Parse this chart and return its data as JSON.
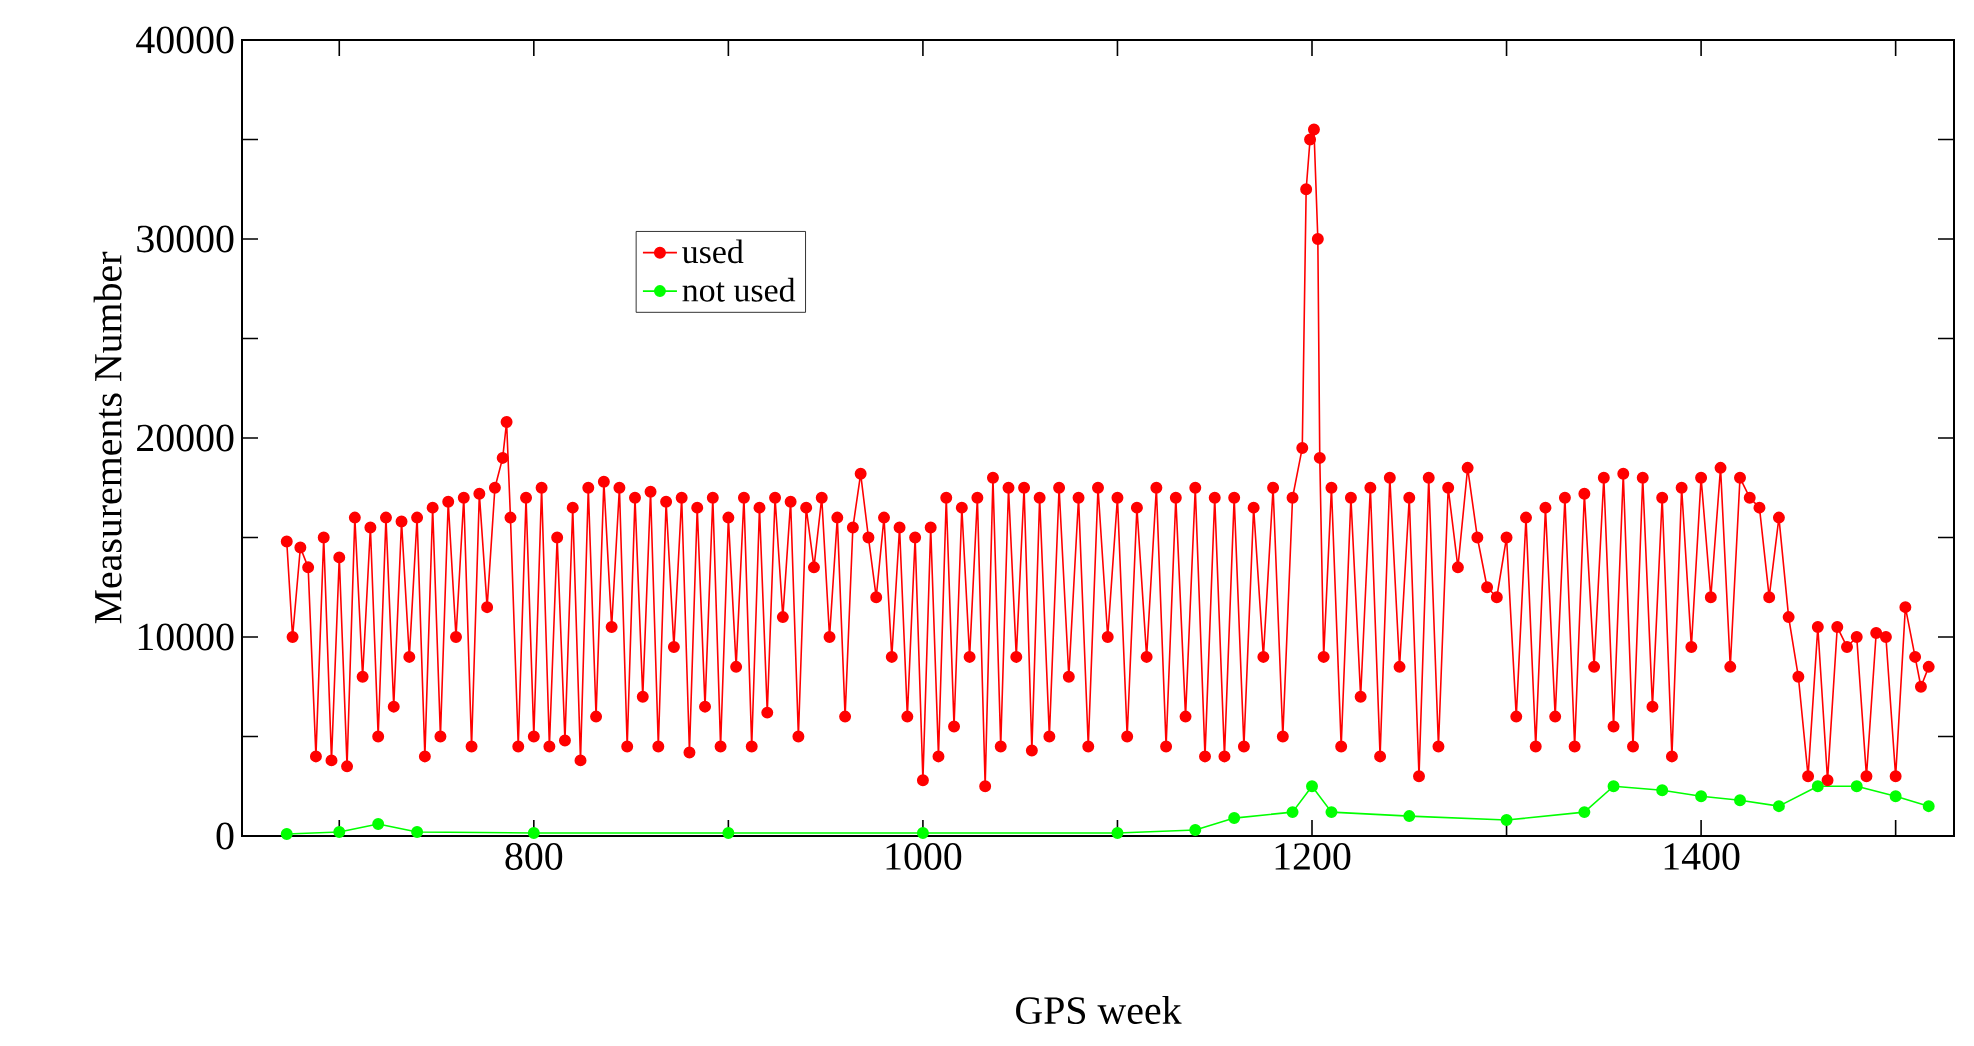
{
  "chart_data": {
    "type": "line",
    "xlabel": "GPS week",
    "ylabel": "Measurements Number",
    "xlim": [
      650,
      1530
    ],
    "ylim": [
      0,
      40000
    ],
    "xticks": [
      {
        "value": 700,
        "label": null
      },
      800,
      {
        "value": 900,
        "label": null
      },
      1000,
      {
        "value": 1100,
        "label": null
      },
      1200,
      {
        "value": 1300,
        "label": null
      },
      1400,
      {
        "value": 1500,
        "label": null
      }
    ],
    "yticks": [
      0,
      {
        "value": 5000,
        "label": null
      },
      10000,
      {
        "value": 15000,
        "label": null
      },
      20000,
      {
        "value": 25000,
        "label": null
      },
      30000,
      {
        "value": 35000,
        "label": null
      },
      40000
    ],
    "grid": false,
    "legend": "top left",
    "marker": "circle",
    "line_style": "solid",
    "series": [
      {
        "name": "used",
        "color": "#ff0000",
        "x": [
          673,
          676,
          680,
          684,
          688,
          692,
          696,
          700,
          704,
          708,
          712,
          716,
          720,
          724,
          728,
          732,
          736,
          740,
          744,
          748,
          752,
          756,
          760,
          764,
          768,
          772,
          776,
          780,
          784,
          786,
          788,
          792,
          796,
          800,
          804,
          808,
          812,
          816,
          820,
          824,
          828,
          832,
          836,
          840,
          844,
          848,
          852,
          856,
          860,
          864,
          868,
          872,
          876,
          880,
          884,
          888,
          892,
          896,
          900,
          904,
          908,
          912,
          916,
          920,
          924,
          928,
          932,
          936,
          940,
          944,
          948,
          952,
          956,
          960,
          964,
          968,
          972,
          976,
          980,
          984,
          988,
          992,
          996,
          1000,
          1004,
          1008,
          1012,
          1016,
          1020,
          1024,
          1028,
          1032,
          1036,
          1040,
          1044,
          1048,
          1052,
          1056,
          1060,
          1065,
          1070,
          1075,
          1080,
          1085,
          1090,
          1095,
          1100,
          1105,
          1110,
          1115,
          1120,
          1125,
          1130,
          1135,
          1140,
          1145,
          1150,
          1155,
          1160,
          1165,
          1170,
          1175,
          1180,
          1185,
          1190,
          1195,
          1197,
          1199,
          1201,
          1203,
          1204,
          1206,
          1210,
          1215,
          1220,
          1225,
          1230,
          1235,
          1240,
          1245,
          1250,
          1255,
          1260,
          1265,
          1270,
          1275,
          1280,
          1285,
          1290,
          1295,
          1300,
          1305,
          1310,
          1315,
          1320,
          1325,
          1330,
          1335,
          1340,
          1345,
          1350,
          1355,
          1360,
          1365,
          1370,
          1375,
          1380,
          1385,
          1390,
          1395,
          1400,
          1405,
          1410,
          1415,
          1420,
          1425,
          1430,
          1435,
          1440,
          1445,
          1450,
          1455,
          1460,
          1465,
          1470,
          1475,
          1480,
          1485,
          1490,
          1495,
          1500,
          1505,
          1510,
          1513,
          1517
        ],
        "values": [
          14800,
          10000,
          14500,
          13500,
          4000,
          15000,
          3800,
          14000,
          3500,
          16000,
          8000,
          15500,
          5000,
          16000,
          6500,
          15800,
          9000,
          16000,
          4000,
          16500,
          5000,
          16800,
          10000,
          17000,
          4500,
          17200,
          11500,
          17500,
          19000,
          20800,
          16000,
          4500,
          17000,
          5000,
          17500,
          4500,
          15000,
          4800,
          16500,
          3800,
          17500,
          6000,
          17800,
          10500,
          17500,
          4500,
          17000,
          7000,
          17300,
          4500,
          16800,
          9500,
          17000,
          4200,
          16500,
          6500,
          17000,
          4500,
          16000,
          8500,
          17000,
          4500,
          16500,
          6200,
          17000,
          11000,
          16800,
          5000,
          16500,
          13500,
          17000,
          10000,
          16000,
          6000,
          15500,
          18200,
          15000,
          12000,
          16000,
          9000,
          15500,
          6000,
          15000,
          2800,
          15500,
          4000,
          17000,
          5500,
          16500,
          9000,
          17000,
          2500,
          18000,
          4500,
          17500,
          9000,
          17500,
          4300,
          17000,
          5000,
          17500,
          8000,
          17000,
          4500,
          17500,
          10000,
          17000,
          5000,
          16500,
          9000,
          17500,
          4500,
          17000,
          6000,
          17500,
          4000,
          17000,
          4000,
          17000,
          4500,
          16500,
          9000,
          17500,
          5000,
          17000,
          19500,
          32500,
          35000,
          35500,
          30000,
          19000,
          9000,
          17500,
          4500,
          17000,
          7000,
          17500,
          4000,
          18000,
          8500,
          17000,
          3000,
          18000,
          4500,
          17500,
          13500,
          18500,
          15000,
          12500,
          12000,
          15000,
          6000,
          16000,
          4500,
          16500,
          6000,
          17000,
          4500,
          17200,
          8500,
          18000,
          5500,
          18200,
          4500,
          18000,
          6500,
          17000,
          4000,
          17500,
          9500,
          18000,
          12000,
          18500,
          8500,
          18000,
          17000,
          16500,
          12000,
          16000,
          11000,
          8000,
          3000,
          10500,
          2800,
          10500,
          9500,
          10000,
          3000,
          10200,
          10000,
          3000,
          11500,
          9000,
          7500,
          8500
        ]
      },
      {
        "name": "not used",
        "color": "#00ff00",
        "x": [
          673,
          700,
          720,
          740,
          800,
          900,
          1000,
          1100,
          1140,
          1160,
          1190,
          1200,
          1210,
          1250,
          1300,
          1340,
          1355,
          1380,
          1400,
          1420,
          1440,
          1460,
          1480,
          1500,
          1517
        ],
        "values": [
          100,
          200,
          600,
          200,
          150,
          150,
          150,
          150,
          300,
          900,
          1200,
          2500,
          1200,
          1000,
          800,
          1200,
          2500,
          2300,
          2000,
          1800,
          1500,
          2500,
          2500,
          2000,
          1500
        ]
      }
    ]
  }
}
